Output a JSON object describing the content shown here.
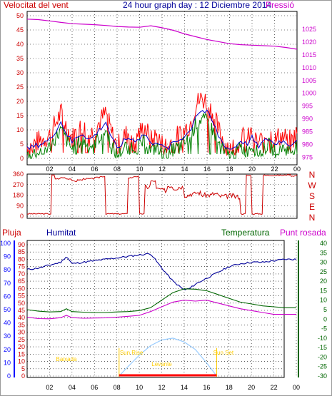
{
  "header": {
    "wind_label": "Velocitat del vent",
    "title": "24 hour graph day : 12 Diciembre 2014",
    "pressure_label": "Pressió"
  },
  "lower_header": {
    "rain_label": "Pluja",
    "humidity_label": "Humitat",
    "temperature_label": "Temperatura",
    "dewpoint_label": "Punt rosada"
  },
  "colors": {
    "wind": "#ff0000",
    "gust": "#ff0000",
    "wind_avg": "#0000cc",
    "wind_low": "#008000",
    "pressure": "#cc00cc",
    "direction": "#cc0000",
    "humidity": "#000099",
    "temperature": "#006600",
    "dewpoint": "#cc00cc",
    "solar": "#99ccff",
    "rain": "#ff0000",
    "sun_events": "#ffcc00"
  },
  "chart_data": [
    {
      "type": "line",
      "panel": "wind-pressure",
      "x_ticks": [
        "02",
        "04",
        "06",
        "08",
        "10",
        "12",
        "14",
        "16",
        "18",
        "20",
        "22",
        "00"
      ],
      "y_left_ticks": [
        "0",
        "5",
        "10",
        "15",
        "20",
        "25",
        "30",
        "35",
        "40",
        "45",
        "50"
      ],
      "y_left_lim": [
        0,
        50
      ],
      "y_right_ticks": [
        "975",
        "980",
        "985",
        "990",
        "995",
        "1000",
        "1005",
        "1010",
        "1015",
        "1020",
        "1025"
      ],
      "y_right_lim": [
        972,
        1032
      ],
      "x_lim": [
        0,
        24
      ],
      "series": [
        {
          "name": "Velocitat del vent",
          "color_key": "wind",
          "x": [
            0,
            1,
            2,
            2.5,
            3,
            3.5,
            4,
            4.5,
            5,
            5.5,
            6,
            6.5,
            7,
            7.5,
            8,
            8.5,
            9,
            9.5,
            10,
            10.5,
            11,
            11.5,
            12,
            12.5,
            13,
            13.5,
            14,
            14.5,
            15,
            15.5,
            16,
            16.5,
            17,
            17.5,
            18,
            18.5,
            19,
            19.5,
            20,
            20.5,
            21,
            21.5,
            22,
            22.5,
            23,
            23.5,
            24
          ],
          "y": [
            4,
            6,
            8,
            12,
            16,
            11,
            7,
            10,
            11,
            8,
            10,
            13,
            16,
            9,
            4,
            7,
            9,
            8,
            9,
            11,
            6,
            8,
            5,
            4,
            7,
            8,
            10,
            12,
            19,
            21,
            20,
            16,
            10,
            6,
            4,
            5,
            8,
            6,
            9,
            5,
            7,
            9,
            6,
            8,
            7,
            6,
            9
          ]
        },
        {
          "name": "Pressió",
          "x": [
            0,
            1,
            2,
            3,
            4,
            5,
            6,
            7,
            8,
            9,
            10,
            11,
            12,
            13,
            14,
            15,
            16,
            17,
            18,
            19,
            20,
            21,
            22,
            23,
            24
          ],
          "y": [
            1029,
            1028.8,
            1028.3,
            1027.7,
            1027.2,
            1027,
            1026.8,
            1026.5,
            1026.1,
            1025.9,
            1025.8,
            1026.4,
            1025.6,
            1024.6,
            1023.2,
            1022.1,
            1021,
            1020.2,
            1019.4,
            1019,
            1018.8,
            1018.6,
            1018.4,
            1017.9,
            1017.2
          ]
        }
      ]
    },
    {
      "type": "scatter",
      "panel": "wind-direction",
      "y_lim": [
        0,
        360
      ],
      "y_ticks": [
        "0",
        "90",
        "180",
        "270",
        "360"
      ],
      "compass": [
        "N",
        "W",
        "S",
        "E",
        "N"
      ],
      "x_lim": [
        0,
        24
      ],
      "series": [
        {
          "x": [
            0,
            0.5,
            1,
            1.5,
            2,
            2.2,
            2.5,
            3,
            3.5,
            4,
            4.5,
            5,
            5.5,
            6,
            6.5,
            7,
            7.5,
            8,
            8.5,
            9,
            9.5,
            10,
            10.5,
            11,
            11.5,
            12,
            12.5,
            13,
            13.5,
            14,
            14.5,
            15,
            15.5,
            16,
            16.5,
            17,
            17.5,
            18,
            18.5,
            19,
            19.5,
            20,
            20.5,
            21,
            21.5,
            22,
            22.5,
            23,
            23.5,
            24
          ],
          "y": [
            20,
            20,
            20,
            20,
            20,
            350,
            320,
            330,
            320,
            300,
            310,
            320,
            320,
            330,
            340,
            20,
            20,
            20,
            20,
            330,
            340,
            20,
            250,
            300,
            230,
            220,
            260,
            240,
            250,
            180,
            190,
            200,
            180,
            180,
            190,
            170,
            170,
            175,
            165,
            20,
            350,
            20,
            20,
            350,
            350,
            350,
            350,
            355,
            345,
            355
          ]
        }
      ]
    },
    {
      "type": "line",
      "panel": "humidity-temperature",
      "y_rain_ticks": [
        "0",
        "10",
        "20",
        "30",
        "40",
        "50",
        "60",
        "70",
        "80",
        "90",
        "100"
      ],
      "y_rain_lim": [
        0,
        100
      ],
      "y_hum_ticks": [
        "0",
        "5",
        "10",
        "15",
        "20",
        "25",
        "30",
        "35",
        "40",
        "45",
        "50",
        "55",
        "60",
        "65",
        "70",
        "75",
        "80",
        "85",
        "90"
      ],
      "y_hum_lim": [
        0,
        90
      ],
      "y_temp_ticks": [
        "-30",
        "-25",
        "-20",
        "-15",
        "-10",
        "-5",
        "0",
        "5",
        "10",
        "15",
        "20",
        "25",
        "30",
        "35",
        "40"
      ],
      "y_temp_lim": [
        -30,
        40
      ],
      "x_ticks": [
        "02",
        "04",
        "06",
        "08",
        "10",
        "12",
        "14",
        "16",
        "18",
        "20",
        "22",
        "00"
      ],
      "x_lim": [
        0,
        24
      ],
      "annotations": [
        "Baixada",
        "Sun Rise",
        "Levante",
        "Sun Set"
      ],
      "series": [
        {
          "name": "Humitat",
          "color_key": "humidity",
          "x": [
            0,
            1,
            2,
            3,
            3.5,
            4,
            5,
            6,
            7,
            8,
            9,
            10,
            11,
            12,
            13,
            14,
            14.5,
            15,
            16,
            17,
            18,
            19,
            20,
            21,
            22,
            23,
            24
          ],
          "y": [
            73,
            74,
            76,
            78,
            82,
            77,
            78,
            79,
            80,
            81,
            82,
            83,
            84,
            74,
            65,
            59,
            60,
            63,
            67,
            71,
            75,
            77,
            78,
            78,
            79,
            80,
            80
          ]
        },
        {
          "name": "Temperatura",
          "color_key": "temperature",
          "x": [
            0,
            1,
            2,
            3,
            3.5,
            4,
            5,
            6,
            7,
            8,
            9,
            10,
            11,
            12,
            13,
            14,
            15,
            16,
            17,
            18,
            19,
            20,
            21,
            22,
            23,
            24
          ],
          "y": [
            5,
            4.2,
            3.8,
            4,
            5.5,
            4,
            3.7,
            3.5,
            3.5,
            3.8,
            4,
            4.5,
            6,
            10,
            14,
            16,
            15.8,
            15,
            13,
            11,
            9,
            8,
            7,
            6.5,
            6,
            6
          ]
        },
        {
          "name": "Punt rosada",
          "color_key": "dewpoint",
          "x": [
            0,
            1,
            2,
            3,
            3.5,
            4,
            5,
            6,
            7,
            8,
            9,
            10,
            11,
            12,
            13,
            14,
            15,
            16,
            17,
            18,
            19,
            20,
            21,
            22,
            23,
            24
          ],
          "y": [
            1,
            0.3,
            0.2,
            0.8,
            2,
            0.8,
            0.5,
            0.6,
            0.7,
            1,
            1.5,
            2,
            4,
            6.5,
            9,
            10,
            9.5,
            10,
            8.5,
            7,
            5.5,
            4.5,
            3.5,
            2.5,
            2.5,
            2.5
          ]
        },
        {
          "name": "solar",
          "color_key": "solar",
          "x": [
            8.2,
            9,
            10,
            11,
            12,
            13,
            14,
            15,
            16,
            16.9
          ],
          "y": [
            -30,
            -25,
            -19,
            -14,
            -11,
            -10,
            -12,
            -16,
            -23,
            -30
          ]
        }
      ]
    }
  ]
}
